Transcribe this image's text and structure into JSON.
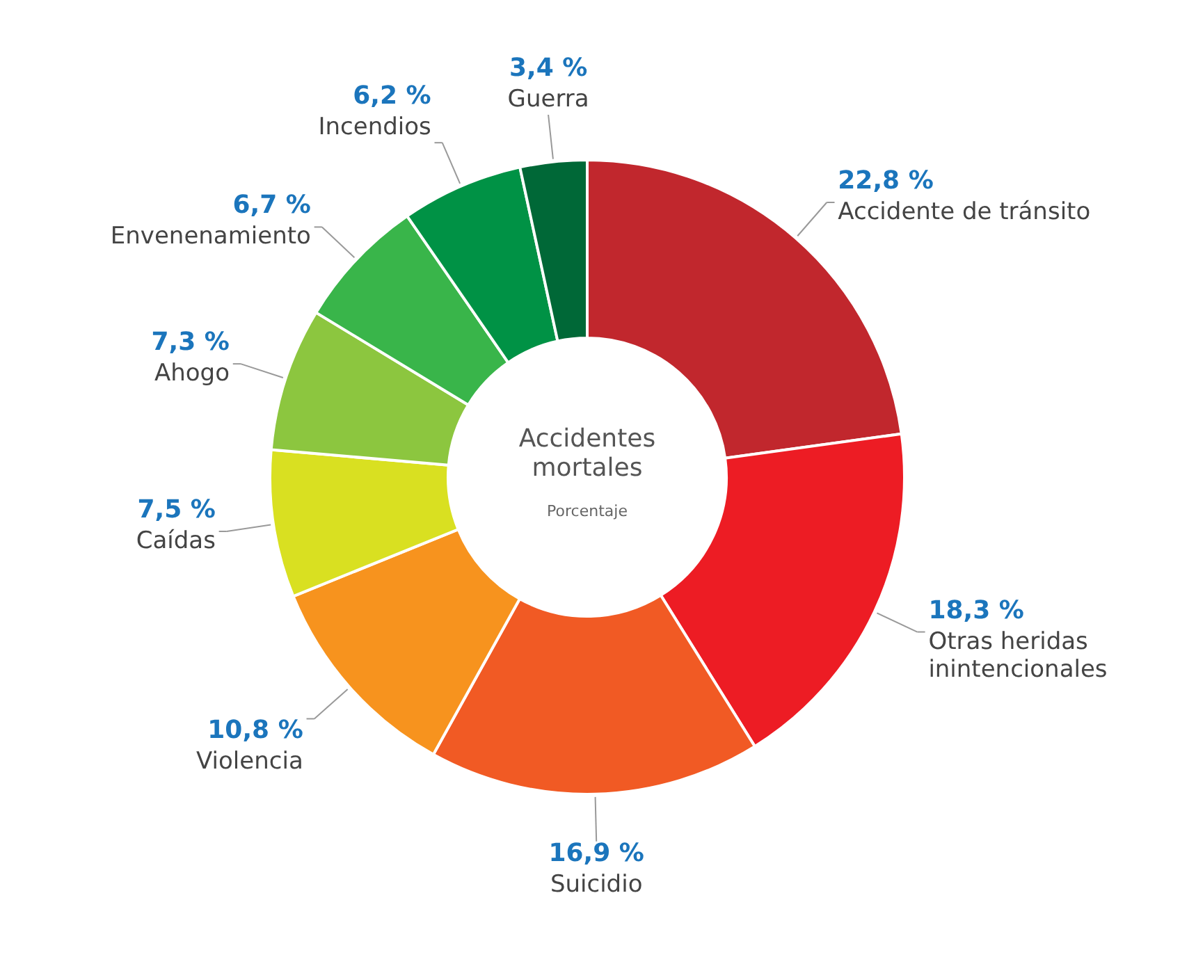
{
  "chart_data": {
    "type": "donut",
    "title": "Accidentes mortales",
    "subtitle": "Porcentaje",
    "categories": [
      "Accidente de tránsito",
      "Otras heridas inintencionales",
      "Suicidio",
      "Violencia",
      "Caídas",
      "Ahogo",
      "Envenenamiento",
      "Incendios",
      "Guerra"
    ],
    "values": [
      22.8,
      18.3,
      16.9,
      10.8,
      7.5,
      7.3,
      6.7,
      6.2,
      3.4
    ],
    "colors": [
      "#c1272d",
      "#ed1c24",
      "#f15a24",
      "#f7931e",
      "#d9e021",
      "#8cc63f",
      "#39b54a",
      "#009245",
      "#006837"
    ],
    "value_labels": [
      "22,8 %",
      "18,3 %",
      "16,9 %",
      "10,8 %",
      "7,5 %",
      "7,3 %",
      "6,7 %",
      "6,2 %",
      "3,4 %"
    ]
  }
}
